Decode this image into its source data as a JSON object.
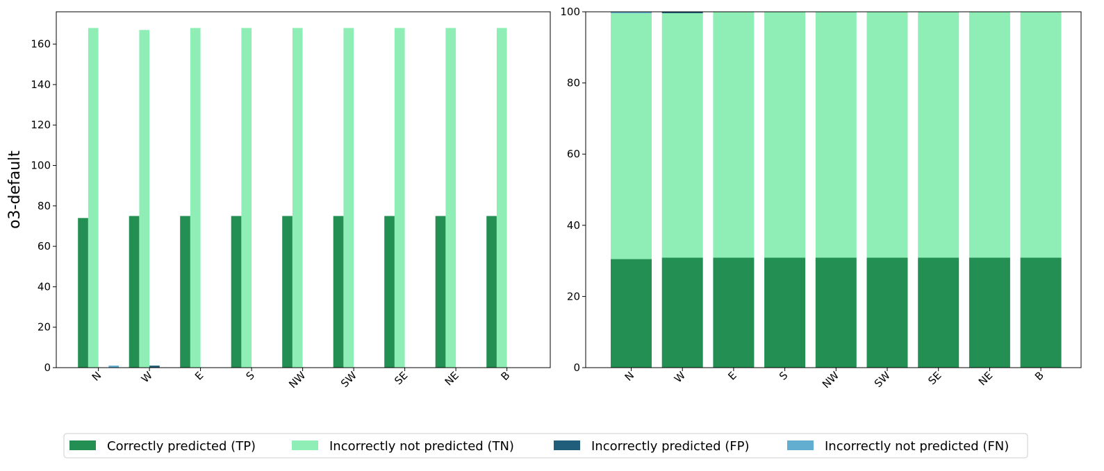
{
  "chart_data": [
    {
      "type": "bar",
      "ylabel": "o3-default",
      "xlabel": "",
      "categories": [
        "N",
        "W",
        "E",
        "S",
        "NW",
        "SW",
        "SE",
        "NE",
        "B"
      ],
      "ylim": [
        0,
        176
      ],
      "yticks": [
        0,
        20,
        40,
        60,
        80,
        100,
        120,
        140,
        160
      ],
      "series": [
        {
          "name": "Correctly predicted (TP)",
          "color": "#248f52",
          "values": [
            74,
            75,
            75,
            75,
            75,
            75,
            75,
            75,
            75
          ]
        },
        {
          "name": "Incorrectly not predicted (TN)",
          "color": "#8feeb6",
          "values": [
            168,
            167,
            168,
            168,
            168,
            168,
            168,
            168,
            168
          ]
        },
        {
          "name": "Incorrectly predicted (FP)",
          "color": "#215e7c",
          "values": [
            0,
            1,
            0,
            0,
            0,
            0,
            0,
            0,
            0
          ]
        },
        {
          "name": "Incorrectly not predicted (FN)",
          "color": "#62aed0",
          "values": [
            1,
            0,
            0,
            0,
            0,
            0,
            0,
            0,
            0
          ]
        }
      ]
    },
    {
      "type": "bar",
      "stacked": true,
      "categories": [
        "N",
        "W",
        "E",
        "S",
        "NW",
        "SW",
        "SE",
        "NE",
        "B"
      ],
      "ylim": [
        0,
        100
      ],
      "yticks": [
        0,
        20,
        40,
        60,
        80,
        100
      ],
      "series": [
        {
          "name": "Correctly predicted (TP)",
          "color": "#248f52",
          "values": [
            30.5,
            30.9,
            30.9,
            30.9,
            30.9,
            30.9,
            30.9,
            30.9,
            30.9
          ]
        },
        {
          "name": "Incorrectly not predicted (TN)",
          "color": "#8feeb6",
          "values": [
            69.1,
            68.7,
            69.1,
            69.1,
            69.1,
            69.1,
            69.1,
            69.1,
            69.1
          ]
        },
        {
          "name": "Incorrectly predicted (FP)",
          "color": "#215e7c",
          "values": [
            0,
            0.4,
            0,
            0,
            0,
            0,
            0,
            0,
            0
          ]
        },
        {
          "name": "Incorrectly not predicted (FN)",
          "color": "#62aed0",
          "values": [
            0.4,
            0,
            0,
            0,
            0,
            0,
            0,
            0,
            0
          ]
        }
      ]
    }
  ],
  "legend": {
    "placement": "bottom",
    "entries": [
      {
        "label": "Correctly predicted (TP)",
        "color": "#248f52"
      },
      {
        "label": "Incorrectly not predicted (TN)",
        "color": "#8feeb6"
      },
      {
        "label": "Incorrectly predicted (FP)",
        "color": "#215e7c"
      },
      {
        "label": "Incorrectly not predicted (FN)",
        "color": "#62aed0"
      }
    ]
  }
}
